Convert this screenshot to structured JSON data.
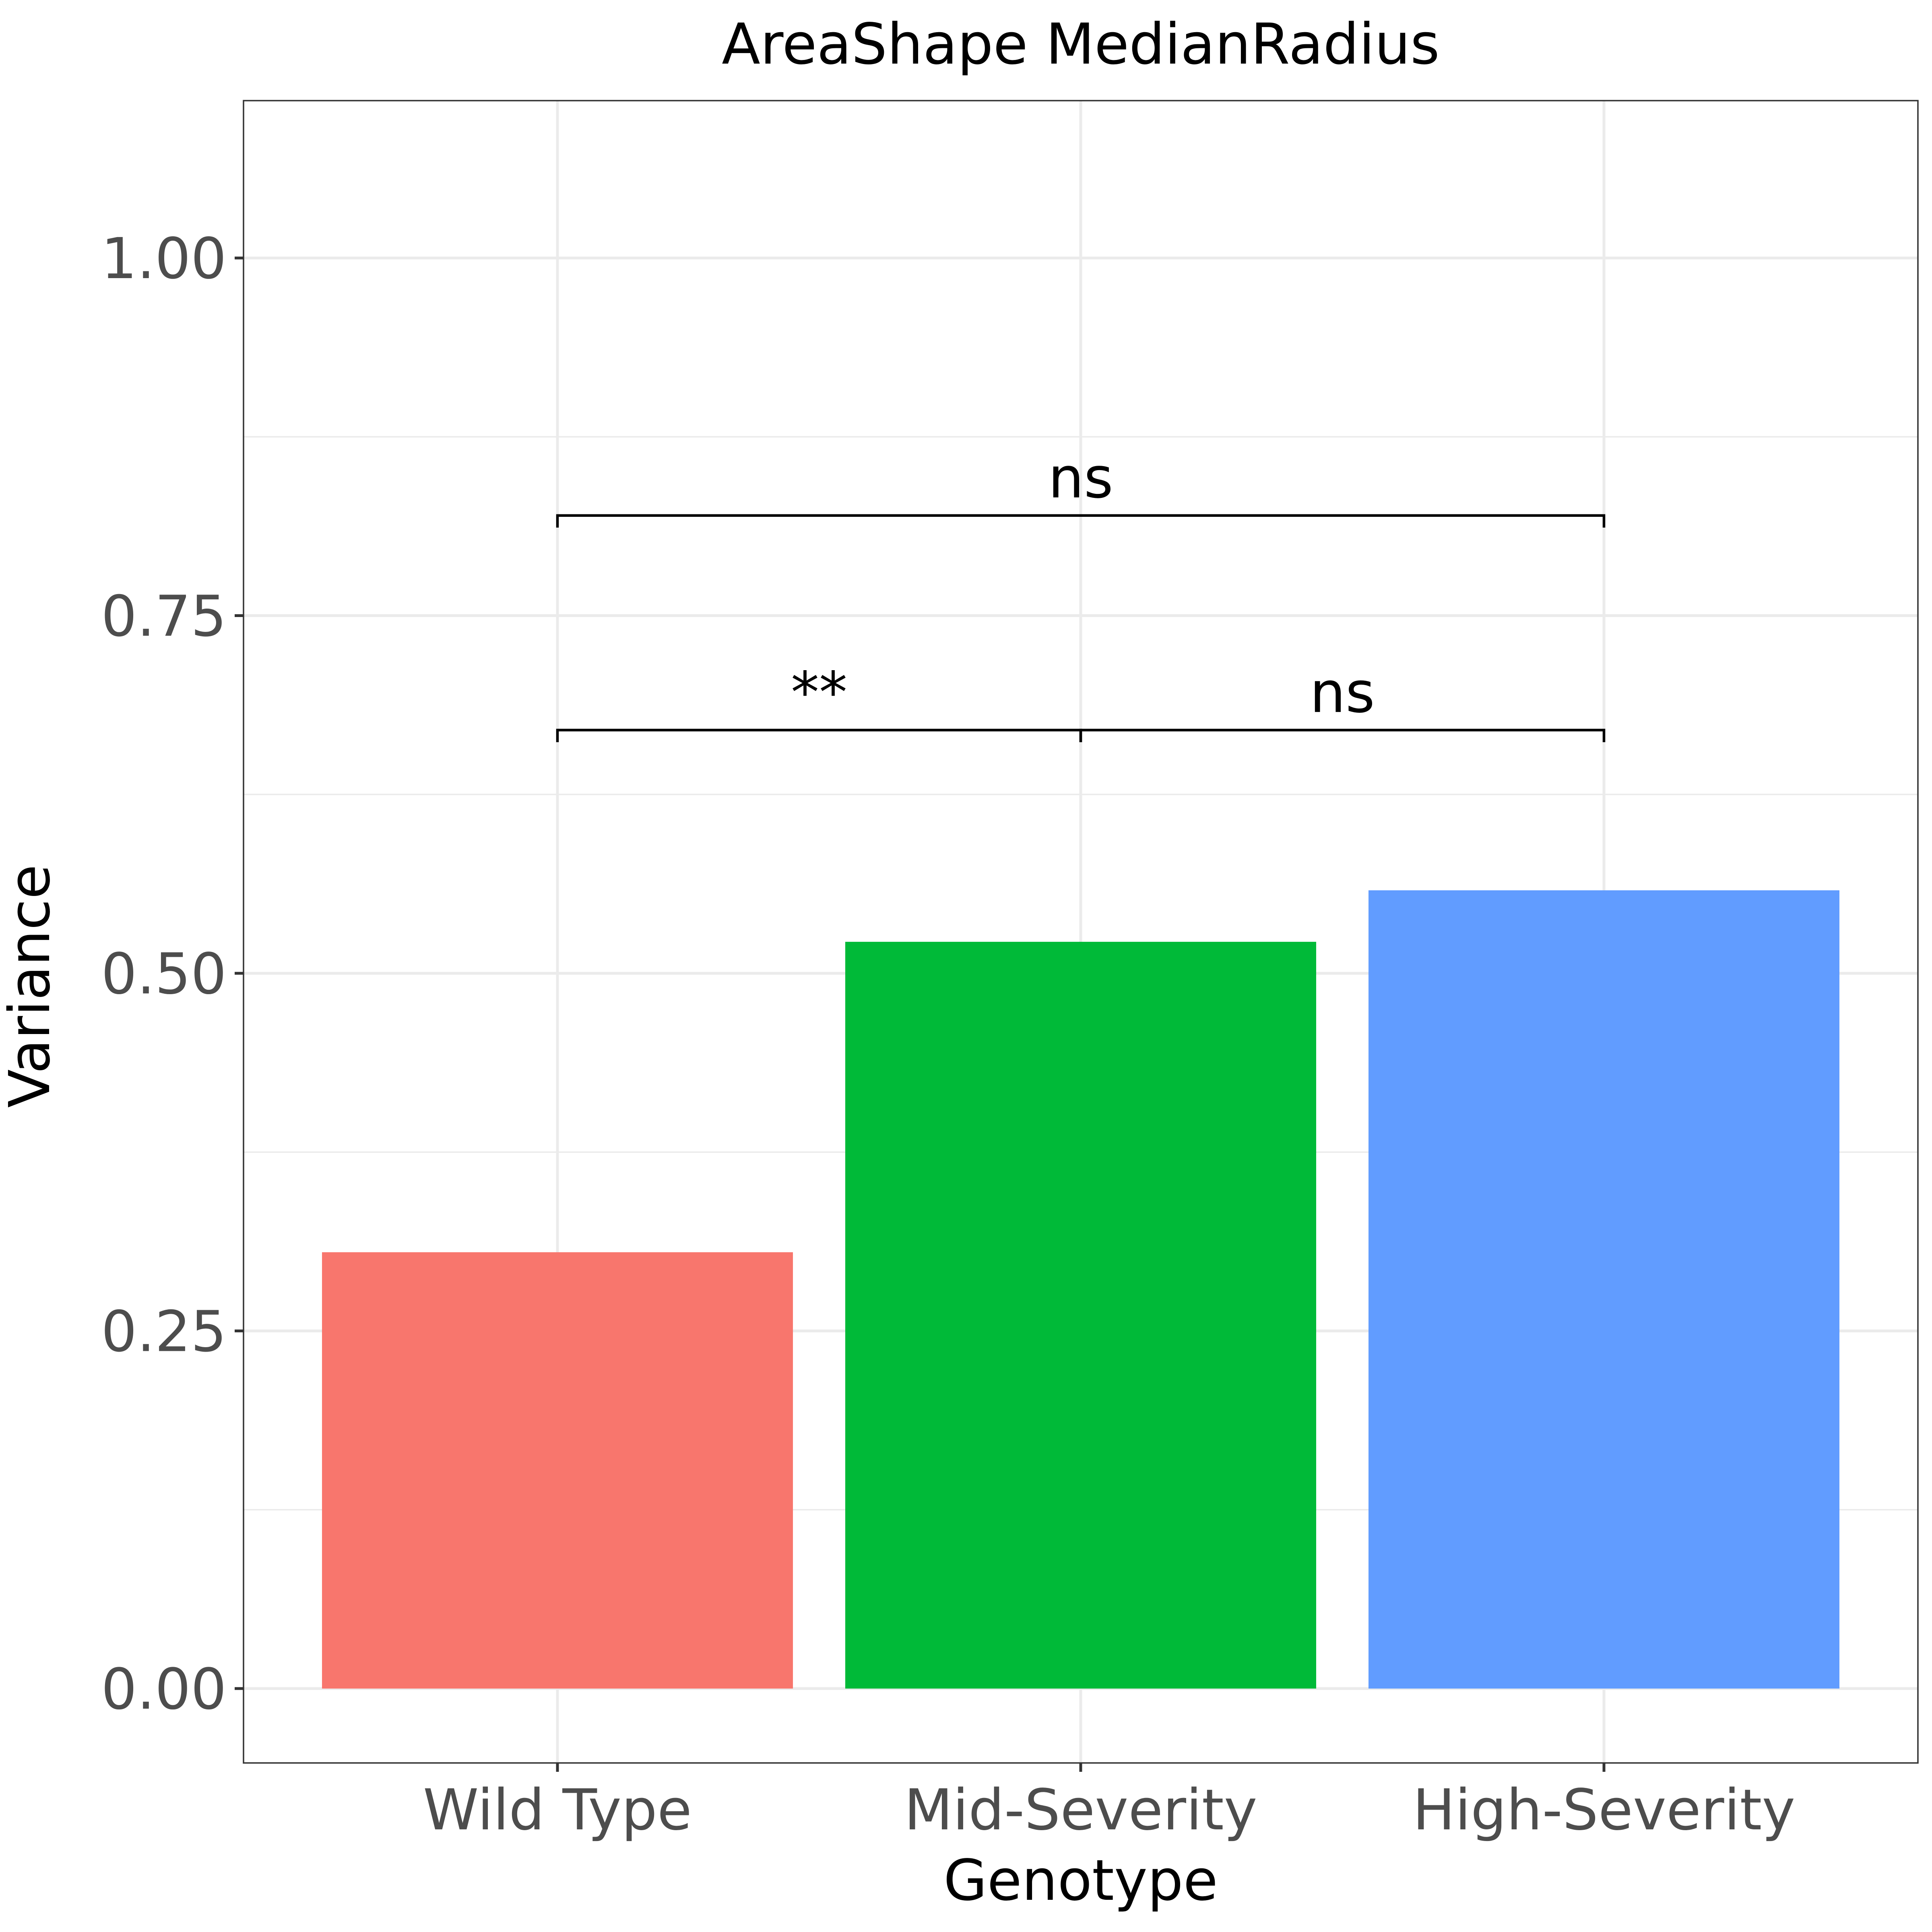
{
  "chart_data": {
    "type": "bar",
    "title": "AreaShape MedianRadius",
    "xlabel": "Genotype",
    "ylabel": "Variance",
    "categories": [
      "Wild Type",
      "Mid-Severity",
      "High-Severity"
    ],
    "values": [
      0.305,
      0.522,
      0.558
    ],
    "colors": [
      "#F8766D",
      "#00BA38",
      "#619CFF"
    ],
    "ylim": [
      -0.052,
      1.11
    ],
    "yticks": [
      0,
      0.25,
      0.5,
      0.75,
      1.0
    ],
    "ytick_labels": [
      "0.00",
      "0.25",
      "0.50",
      "0.75",
      "1.00"
    ],
    "grid": true,
    "legend": "none",
    "annotations": [
      {
        "from": "Wild Type",
        "to": "Mid-Severity",
        "y": 0.67,
        "label": "**"
      },
      {
        "from": "Mid-Severity",
        "to": "High-Severity",
        "y": 0.67,
        "label": "ns"
      },
      {
        "from": "Wild Type",
        "to": "High-Severity",
        "y": 0.82,
        "label": "ns"
      }
    ]
  }
}
